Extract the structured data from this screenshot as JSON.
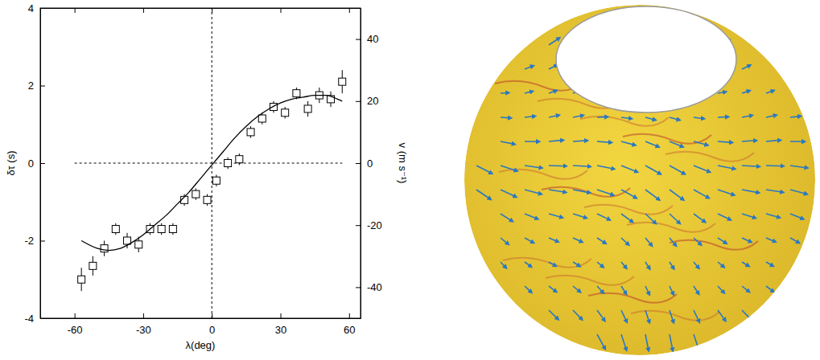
{
  "chart_data": {
    "type": "scatter",
    "x_label": "λ(deg)",
    "y_label": "δτ (s)",
    "y2_label": "v (m s⁻¹)",
    "xlim": [
      -75,
      65
    ],
    "xticks": [
      -60,
      -30,
      0,
      30,
      60
    ],
    "ylim": [
      -4,
      4
    ],
    "yticks": [
      -4,
      -2,
      0,
      2,
      4
    ],
    "y2lim": [
      -50,
      50
    ],
    "y2ticks": [
      -40,
      -20,
      0,
      20,
      40
    ],
    "grid": false,
    "reference_lines": [
      {
        "axis": "x",
        "value": 0
      },
      {
        "axis": "y",
        "value": 0,
        "xrange": [
          -60,
          57
        ]
      }
    ],
    "series": [
      {
        "type": "scatter",
        "marker": "square",
        "color": "#000000",
        "x": [
          -57,
          -52,
          -47,
          -42,
          -37,
          -32,
          -27,
          -22,
          -17,
          -12,
          -7,
          -2,
          2,
          7,
          12,
          17,
          22,
          27,
          32,
          37,
          42,
          47,
          52,
          57
        ],
        "values": [
          -3.0,
          -2.65,
          -2.2,
          -1.7,
          -2.0,
          -2.1,
          -1.7,
          -1.7,
          -1.7,
          -0.95,
          -0.8,
          -0.95,
          -0.45,
          0.0,
          0.1,
          0.8,
          1.15,
          1.45,
          1.3,
          1.8,
          1.4,
          1.75,
          1.65,
          2.1
        ],
        "errors": [
          0.3,
          0.25,
          0.2,
          0.15,
          0.2,
          0.2,
          0.15,
          0.15,
          0.15,
          0.15,
          0.15,
          0.15,
          0.15,
          0.15,
          0.15,
          0.15,
          0.15,
          0.15,
          0.15,
          0.15,
          0.2,
          0.2,
          0.2,
          0.3
        ]
      },
      {
        "type": "line",
        "line_style": "solid",
        "color": "#000000",
        "x": [
          -57,
          -50,
          -45,
          -40,
          -35,
          -30,
          -25,
          -20,
          -15,
          -10,
          -5,
          0,
          5,
          10,
          15,
          20,
          25,
          30,
          35,
          40,
          45,
          50,
          55,
          57
        ],
        "values": [
          -2.0,
          -2.2,
          -2.25,
          -2.2,
          -2.05,
          -1.85,
          -1.6,
          -1.35,
          -1.05,
          -0.75,
          -0.4,
          -0.05,
          0.3,
          0.65,
          0.95,
          1.2,
          1.4,
          1.55,
          1.65,
          1.7,
          1.75,
          1.75,
          1.65,
          1.6
        ]
      }
    ]
  }
}
